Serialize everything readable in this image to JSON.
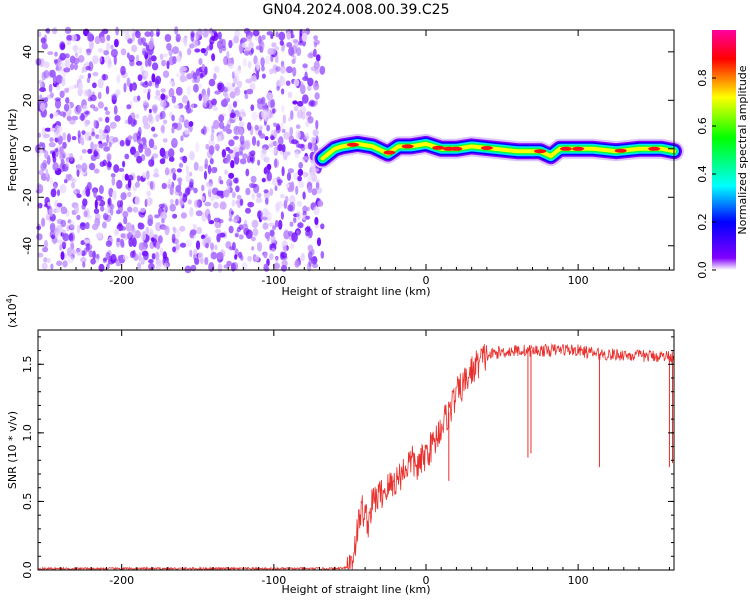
{
  "page": {
    "title": "GN04.2024.008.00.39.C25"
  },
  "chart_data": [
    {
      "type": "heatmap",
      "title": "GN04.2024.008.00.39.C25",
      "xlabel": "Height of straight line (km)",
      "ylabel": "Frequency (Hz)",
      "xlim": [
        -255,
        163
      ],
      "ylim": [
        -50,
        49
      ],
      "xticks": [
        -200,
        -100,
        0,
        100
      ],
      "yticks": [
        -40,
        -20,
        0,
        20,
        40
      ],
      "colorbar": {
        "label": "Normalized spectral amplitude",
        "range": [
          0,
          1
        ],
        "ticks": [
          "0.0",
          "0.2",
          "0.4",
          "0.6",
          "0.8"
        ],
        "colors": [
          "#ffffff",
          "#8000ff",
          "#0000ff",
          "#00ffff",
          "#00ff00",
          "#ffff00",
          "#ff0000",
          "#ff00a0"
        ]
      },
      "regions": [
        {
          "name": "noise",
          "x_range": [
            -255,
            -68
          ],
          "freq_range": [
            -50,
            49
          ],
          "amplitude": "low, scattered"
        },
        {
          "name": "signal",
          "x_range": [
            -68,
            163
          ],
          "freq_center": 0,
          "amplitude": "high, narrow band near 0 Hz"
        }
      ],
      "signal_centerline": [
        {
          "x": -68,
          "y": -4
        },
        {
          "x": -64,
          "y": -2
        },
        {
          "x": -60,
          "y": 0
        },
        {
          "x": -55,
          "y": 1
        },
        {
          "x": -45,
          "y": 2
        },
        {
          "x": -35,
          "y": 1
        },
        {
          "x": -25,
          "y": -2
        },
        {
          "x": -18,
          "y": 1
        },
        {
          "x": -10,
          "y": 1
        },
        {
          "x": 0,
          "y": 2
        },
        {
          "x": 10,
          "y": 0
        },
        {
          "x": 20,
          "y": 0
        },
        {
          "x": 30,
          "y": 1
        },
        {
          "x": 45,
          "y": 0
        },
        {
          "x": 60,
          "y": -1
        },
        {
          "x": 75,
          "y": -1
        },
        {
          "x": 82,
          "y": -3
        },
        {
          "x": 88,
          "y": 0
        },
        {
          "x": 100,
          "y": 0
        },
        {
          "x": 110,
          "y": 0
        },
        {
          "x": 125,
          "y": -1
        },
        {
          "x": 140,
          "y": 0
        },
        {
          "x": 155,
          "y": 0
        },
        {
          "x": 163,
          "y": -1
        }
      ]
    },
    {
      "type": "line",
      "xlabel": "Height of straight line (km)",
      "ylabel": "SNR (10 * v/v)",
      "yexponent": "(x10",
      "yexponent_power": "4",
      "xlim": [
        -255,
        163
      ],
      "ylim": [
        0,
        1.75
      ],
      "xticks": [
        -200,
        -100,
        0,
        100
      ],
      "yticks": [
        "0.0",
        "0.5",
        "1.0",
        "1.5"
      ],
      "color": "#e8302d",
      "series": [
        {
          "points": [
            [
              -255,
              0.01
            ],
            [
              -200,
              0.01
            ],
            [
              -150,
              0.01
            ],
            [
              -100,
              0.01
            ],
            [
              -60,
              0.01
            ],
            [
              -52,
              0.02
            ],
            [
              -48,
              0.1
            ],
            [
              -45,
              0.3
            ],
            [
              -42,
              0.45
            ],
            [
              -38,
              0.35
            ],
            [
              -35,
              0.5
            ],
            [
              -30,
              0.55
            ],
            [
              -25,
              0.6
            ],
            [
              -20,
              0.65
            ],
            [
              -15,
              0.72
            ],
            [
              -10,
              0.8
            ],
            [
              -5,
              0.75
            ],
            [
              0,
              0.85
            ],
            [
              5,
              0.92
            ],
            [
              10,
              1.05
            ],
            [
              15,
              1.15
            ],
            [
              20,
              1.28
            ],
            [
              25,
              1.36
            ],
            [
              30,
              1.45
            ],
            [
              35,
              1.52
            ],
            [
              40,
              1.56
            ],
            [
              45,
              1.58
            ],
            [
              50,
              1.59
            ],
            [
              60,
              1.6
            ],
            [
              70,
              1.6
            ],
            [
              80,
              1.6
            ],
            [
              90,
              1.61
            ],
            [
              100,
              1.6
            ],
            [
              110,
              1.58
            ],
            [
              120,
              1.57
            ],
            [
              130,
              1.57
            ],
            [
              140,
              1.56
            ],
            [
              150,
              1.56
            ],
            [
              163,
              1.56
            ]
          ],
          "dips": [
            {
              "x": 15,
              "y": 0.65
            },
            {
              "x": 67,
              "y": 0.82
            },
            {
              "x": 69,
              "y": 0.85
            },
            {
              "x": 114,
              "y": 0.75
            },
            {
              "x": 160,
              "y": 0.75
            },
            {
              "x": 162,
              "y": 0.78
            }
          ]
        }
      ]
    }
  ]
}
